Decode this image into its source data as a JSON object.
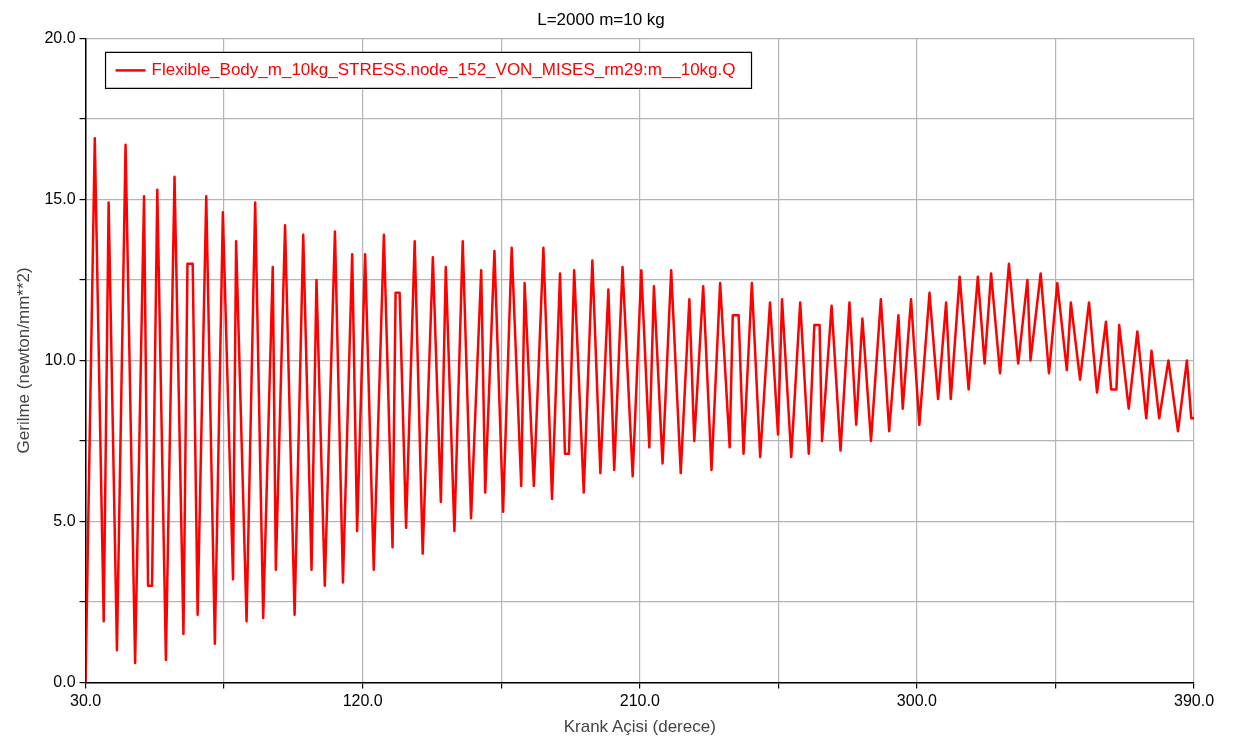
{
  "chart_data": {
    "type": "line",
    "title": "L=2000 m=10 kg",
    "xlabel": "Krank Açisi (derece)",
    "ylabel": "Gerilme (newton/mm**2)",
    "xlim": [
      30,
      390
    ],
    "xticks": [
      {
        "value": 30,
        "label": "30.0"
      },
      {
        "value": 75,
        "label": null
      },
      {
        "value": 120,
        "label": "120.0"
      },
      {
        "value": 165,
        "label": null
      },
      {
        "value": 210,
        "label": "210.0"
      },
      {
        "value": 255,
        "label": null
      },
      {
        "value": 300,
        "label": "300.0"
      },
      {
        "value": 345,
        "label": null
      },
      {
        "value": 390,
        "label": "390.0"
      }
    ],
    "ylim": [
      0,
      20
    ],
    "yticks": [
      {
        "value": 0,
        "label": "0.0"
      },
      {
        "value": 2.5,
        "label": null
      },
      {
        "value": 5,
        "label": "5.0"
      },
      {
        "value": 7.5,
        "label": null
      },
      {
        "value": 10,
        "label": "10.0"
      },
      {
        "value": 12.5,
        "label": null
      },
      {
        "value": 15,
        "label": "15.0"
      },
      {
        "value": 17.5,
        "label": null
      },
      {
        "value": 20,
        "label": "20.0"
      }
    ],
    "grid": true,
    "legend": "top left",
    "marker": "none",
    "line_style": "solid",
    "series": [
      {
        "name": "Flexible_Body_m_10kg_STRESS.node_152_VON_MISES_rm29:m__10kg.Q",
        "color": "#ff0000",
        "x": [
          30.0,
          33.0,
          35.9,
          37.5,
          40.2,
          43.0,
          46.1,
          49.0,
          50.3,
          51.6,
          53.3,
          56.1,
          58.9,
          61.8,
          63.1,
          64.8,
          66.4,
          69.2,
          72.0,
          74.6,
          77.9,
          78.9,
          82.3,
          85.1,
          87.7,
          90.8,
          91.8,
          94.8,
          97.9,
          100.7,
          103.4,
          105.0,
          107.7,
          111.0,
          113.6,
          116.6,
          118.2,
          120.8,
          123.6,
          126.9,
          129.7,
          130.7,
          132.0,
          134.1,
          136.9,
          139.5,
          142.8,
          145.4,
          147.0,
          149.8,
          152.5,
          155.2,
          158.5,
          159.8,
          162.8,
          165.6,
          168.4,
          171.5,
          172.6,
          175.6,
          178.7,
          181.5,
          184.1,
          185.7,
          187.0,
          188.7,
          191.8,
          194.6,
          197.2,
          199.8,
          201.7,
          204.4,
          207.7,
          210.5,
          213.1,
          214.6,
          217.4,
          220.2,
          223.3,
          226.1,
          227.7,
          230.6,
          233.3,
          236.1,
          239.2,
          240.2,
          242.1,
          243.7,
          246.4,
          249.1,
          252.3,
          254.9,
          256.2,
          259.2,
          262.1,
          264.9,
          266.7,
          268.4,
          269.2,
          272.3,
          275.2,
          278.1,
          280.3,
          282.3,
          285.1,
          288.3,
          291.0,
          294.0,
          295.4,
          298.1,
          300.8,
          304.1,
          306.9,
          309.5,
          311.0,
          313.9,
          316.8,
          319.8,
          322.0,
          324.1,
          327.0,
          329.9,
          332.9,
          335.9,
          336.9,
          340.2,
          342.9,
          345.6,
          348.7,
          350.0,
          353.0,
          355.9,
          358.5,
          361.4,
          363.1,
          364.8,
          365.7,
          368.8,
          371.6,
          374.5,
          376.2,
          378.7,
          381.7,
          384.8,
          387.7,
          389.1,
          390.0
        ],
        "values": [
          0.0,
          16.9,
          1.9,
          14.9,
          1.0,
          16.7,
          0.6,
          15.1,
          3.0,
          3.0,
          15.3,
          0.7,
          15.7,
          1.5,
          13.0,
          13.0,
          2.1,
          15.1,
          1.2,
          14.6,
          3.2,
          13.7,
          1.9,
          14.9,
          2.0,
          12.9,
          3.5,
          14.2,
          2.1,
          13.9,
          3.5,
          12.5,
          3.0,
          14.0,
          3.1,
          13.3,
          4.7,
          13.3,
          3.5,
          13.9,
          4.2,
          12.1,
          12.1,
          4.8,
          13.7,
          4.0,
          13.2,
          5.6,
          12.9,
          4.7,
          13.7,
          5.1,
          12.8,
          5.9,
          13.4,
          5.3,
          13.5,
          6.1,
          12.4,
          6.1,
          13.5,
          5.7,
          12.7,
          7.1,
          7.1,
          12.8,
          5.9,
          13.1,
          6.5,
          12.2,
          6.6,
          12.9,
          6.4,
          12.8,
          7.3,
          12.3,
          6.8,
          12.8,
          6.5,
          11.9,
          7.5,
          12.3,
          6.6,
          12.4,
          7.3,
          11.4,
          11.4,
          7.1,
          12.4,
          7.0,
          11.8,
          7.7,
          11.9,
          7.0,
          11.8,
          7.1,
          11.1,
          11.1,
          7.5,
          11.7,
          7.2,
          11.8,
          8.0,
          11.3,
          7.5,
          11.9,
          7.8,
          11.4,
          8.5,
          11.9,
          8.0,
          12.1,
          8.8,
          11.8,
          8.8,
          12.6,
          9.1,
          12.6,
          9.9,
          12.7,
          9.6,
          13.0,
          9.9,
          12.5,
          10.0,
          12.7,
          9.6,
          12.4,
          9.7,
          11.8,
          9.4,
          11.8,
          9.0,
          11.2,
          9.1,
          9.1,
          11.1,
          8.5,
          10.9,
          8.2,
          10.3,
          8.2,
          10.0,
          7.8,
          10.0,
          8.2,
          8.2
        ]
      }
    ]
  }
}
